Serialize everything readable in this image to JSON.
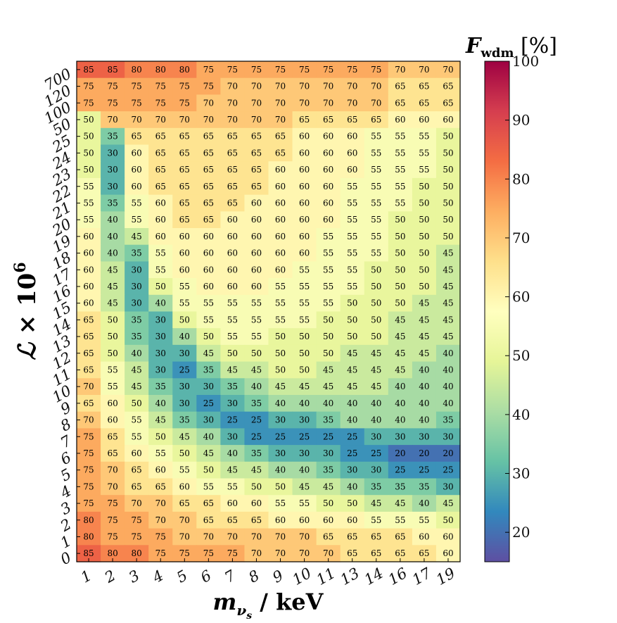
{
  "chart_data": {
    "type": "heatmap",
    "xlabel": "m_{ν_s} / keV",
    "ylabel": "ℒ × 10⁶",
    "colorbar_label": "F_wdm [%]",
    "colorbar_range": [
      15,
      100
    ],
    "colorbar_ticks": [
      20,
      30,
      40,
      50,
      60,
      70,
      80,
      90,
      100
    ],
    "colormap": "Spectral_r",
    "x_categories": [
      "1",
      "2",
      "3",
      "4",
      "5",
      "6",
      "7",
      "8",
      "9",
      "10",
      "11",
      "13",
      "14",
      "16",
      "17",
      "19"
    ],
    "y_categories": [
      "0",
      "1",
      "2",
      "3",
      "4",
      "5",
      "6",
      "7",
      "8",
      "9",
      "10",
      "11",
      "12",
      "13",
      "14",
      "15",
      "16",
      "17",
      "18",
      "19",
      "20",
      "21",
      "22",
      "23",
      "24",
      "25",
      "50",
      "100",
      "120",
      "700"
    ],
    "rows_top_to_bottom": [
      [
        85,
        85,
        80,
        80,
        80,
        75,
        75,
        75,
        75,
        75,
        75,
        75,
        75,
        70,
        70,
        70
      ],
      [
        75,
        75,
        75,
        75,
        75,
        75,
        70,
        70,
        70,
        70,
        70,
        70,
        70,
        65,
        65,
        65
      ],
      [
        75,
        75,
        75,
        75,
        75,
        70,
        70,
        70,
        70,
        70,
        70,
        70,
        70,
        65,
        65,
        65
      ],
      [
        50,
        70,
        70,
        70,
        70,
        70,
        70,
        70,
        70,
        65,
        65,
        65,
        65,
        60,
        60,
        60
      ],
      [
        50,
        35,
        65,
        65,
        65,
        65,
        65,
        65,
        65,
        60,
        60,
        60,
        55,
        55,
        55,
        50
      ],
      [
        50,
        30,
        60,
        65,
        65,
        65,
        65,
        65,
        65,
        60,
        60,
        60,
        55,
        55,
        55,
        50
      ],
      [
        50,
        30,
        60,
        65,
        65,
        65,
        65,
        65,
        60,
        60,
        60,
        60,
        55,
        55,
        55,
        50
      ],
      [
        55,
        30,
        60,
        65,
        65,
        65,
        65,
        65,
        60,
        60,
        60,
        55,
        55,
        55,
        50,
        50
      ],
      [
        55,
        35,
        55,
        60,
        65,
        65,
        65,
        60,
        60,
        60,
        60,
        55,
        55,
        55,
        50,
        50
      ],
      [
        55,
        40,
        55,
        60,
        65,
        65,
        60,
        60,
        60,
        60,
        60,
        55,
        55,
        50,
        50,
        50
      ],
      [
        60,
        40,
        45,
        60,
        60,
        60,
        60,
        60,
        60,
        60,
        55,
        55,
        55,
        50,
        50,
        50
      ],
      [
        60,
        40,
        35,
        55,
        60,
        60,
        60,
        60,
        60,
        60,
        55,
        55,
        55,
        50,
        50,
        45
      ],
      [
        60,
        45,
        30,
        55,
        60,
        60,
        60,
        60,
        60,
        55,
        55,
        55,
        50,
        50,
        50,
        45
      ],
      [
        60,
        45,
        30,
        50,
        55,
        60,
        60,
        60,
        55,
        55,
        55,
        55,
        50,
        50,
        50,
        45
      ],
      [
        60,
        45,
        30,
        40,
        55,
        55,
        55,
        55,
        55,
        55,
        55,
        50,
        50,
        50,
        45,
        45
      ],
      [
        65,
        50,
        35,
        30,
        50,
        55,
        55,
        55,
        55,
        55,
        50,
        50,
        50,
        45,
        45,
        45
      ],
      [
        65,
        50,
        35,
        30,
        40,
        50,
        55,
        55,
        50,
        50,
        50,
        50,
        50,
        45,
        45,
        45
      ],
      [
        65,
        50,
        40,
        30,
        30,
        45,
        50,
        50,
        50,
        50,
        50,
        45,
        45,
        45,
        45,
        40
      ],
      [
        65,
        55,
        45,
        30,
        25,
        35,
        45,
        45,
        50,
        50,
        45,
        45,
        45,
        45,
        40,
        40
      ],
      [
        70,
        55,
        45,
        35,
        30,
        30,
        35,
        40,
        45,
        45,
        45,
        45,
        45,
        40,
        40,
        40
      ],
      [
        65,
        60,
        50,
        40,
        30,
        25,
        30,
        35,
        40,
        40,
        40,
        40,
        40,
        40,
        40,
        40
      ],
      [
        70,
        60,
        55,
        45,
        35,
        30,
        25,
        25,
        30,
        30,
        35,
        40,
        40,
        40,
        40,
        35
      ],
      [
        75,
        65,
        55,
        50,
        45,
        40,
        30,
        25,
        25,
        25,
        25,
        25,
        30,
        30,
        30,
        30
      ],
      [
        75,
        65,
        60,
        55,
        50,
        45,
        40,
        35,
        30,
        30,
        30,
        25,
        25,
        20,
        20,
        20
      ],
      [
        75,
        70,
        65,
        60,
        55,
        50,
        45,
        45,
        40,
        40,
        35,
        30,
        30,
        25,
        25,
        25
      ],
      [
        75,
        70,
        65,
        65,
        60,
        55,
        55,
        50,
        50,
        45,
        45,
        40,
        35,
        35,
        35,
        30
      ],
      [
        75,
        75,
        70,
        70,
        65,
        65,
        60,
        60,
        55,
        55,
        50,
        50,
        45,
        45,
        40,
        45
      ],
      [
        80,
        75,
        75,
        70,
        70,
        65,
        65,
        65,
        60,
        60,
        60,
        60,
        55,
        55,
        55,
        50
      ],
      [
        80,
        75,
        75,
        75,
        70,
        70,
        70,
        70,
        70,
        70,
        65,
        65,
        65,
        65,
        60,
        60
      ],
      [
        85,
        80,
        80,
        75,
        75,
        75,
        75,
        70,
        70,
        70,
        70,
        65,
        65,
        65,
        65,
        60
      ]
    ]
  }
}
